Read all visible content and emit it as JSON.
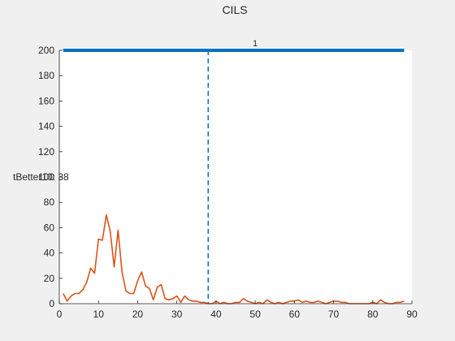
{
  "window": {
    "title": "CILS"
  },
  "chart_data": {
    "type": "line",
    "title": "CILS",
    "xlabel": "",
    "ylabel": "",
    "xlim": [
      0,
      90
    ],
    "ylim": [
      0,
      200
    ],
    "xticks": [
      0,
      10,
      20,
      30,
      40,
      50,
      60,
      70,
      80,
      90
    ],
    "yticks": [
      0,
      20,
      40,
      60,
      80,
      100,
      120,
      140,
      160,
      180,
      200
    ],
    "grid": false,
    "colors": {
      "top_line": "#0072BD",
      "series": "#D95319",
      "vline": "#0072BD"
    },
    "series": [
      {
        "role": "top-line",
        "x": [
          1,
          88
        ],
        "y": [
          200,
          200
        ]
      },
      {
        "role": "main-series",
        "x": [
          1,
          2,
          3,
          4,
          5,
          6,
          7,
          8,
          9,
          10,
          11,
          12,
          13,
          14,
          15,
          16,
          17,
          18,
          19,
          20,
          21,
          22,
          23,
          24,
          25,
          26,
          27,
          28,
          29,
          30,
          31,
          32,
          33,
          34,
          35,
          36,
          37,
          38,
          39,
          40,
          41,
          42,
          43,
          44,
          45,
          46,
          47,
          48,
          49,
          50,
          51,
          52,
          53,
          54,
          55,
          56,
          57,
          58,
          59,
          60,
          61,
          62,
          63,
          64,
          65,
          66,
          67,
          68,
          69,
          70,
          71,
          72,
          73,
          74,
          75,
          76,
          77,
          78,
          79,
          80,
          81,
          82,
          83,
          84,
          85,
          86,
          87,
          88
        ],
        "y": [
          8,
          2,
          6,
          8,
          8,
          11,
          17,
          28,
          24,
          51,
          50,
          70,
          57,
          29,
          58,
          25,
          10,
          8,
          8,
          18,
          25,
          14,
          12,
          3,
          13,
          15,
          4,
          3,
          4,
          6,
          1,
          6,
          3,
          2,
          2,
          1,
          1,
          0,
          0,
          2,
          0,
          1,
          0,
          0,
          1,
          1,
          4,
          2,
          1,
          0,
          1,
          0,
          3,
          1,
          0,
          1,
          0,
          1,
          2,
          2,
          3,
          1,
          2,
          1,
          1,
          2,
          1,
          0,
          1,
          2,
          2,
          1,
          1,
          0,
          0,
          0,
          0,
          0,
          0,
          1,
          0,
          3,
          1,
          0,
          0,
          1,
          1,
          2
        ]
      }
    ],
    "vline": {
      "x": 38,
      "style": "dashed"
    },
    "annotations": [
      {
        "text": "1",
        "x": 50,
        "y": 207
      },
      {
        "text": "tBetter10: 38",
        "x": -5,
        "y": 100
      }
    ]
  }
}
